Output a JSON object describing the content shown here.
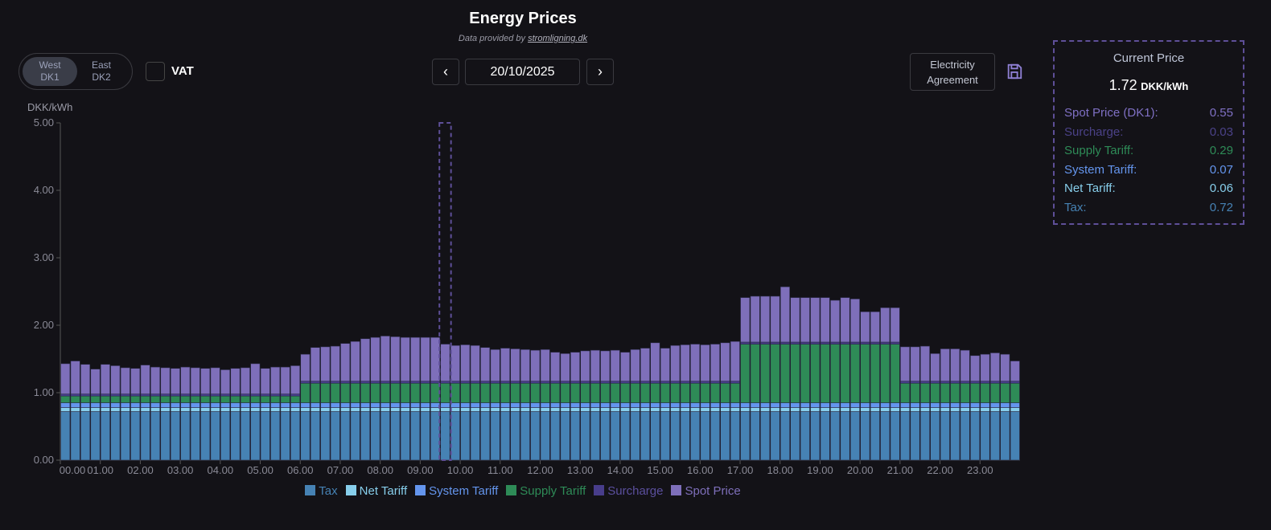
{
  "header": {
    "title": "Energy Prices",
    "subtitle_prefix": "Data provided by ",
    "subtitle_link": "stromligning.dk"
  },
  "controls": {
    "regions": [
      {
        "line1": "West",
        "line2": "DK1",
        "active": true
      },
      {
        "line1": "East",
        "line2": "DK2",
        "active": false
      }
    ],
    "vat_label": "VAT",
    "vat_checked": false,
    "prev_icon": "chevron-left-icon",
    "next_icon": "chevron-right-icon",
    "date": "20/10/2025",
    "agreement_line1": "Electricity",
    "agreement_line2": "Agreement",
    "save_icon": "floppy-disk-icon"
  },
  "current_price": {
    "title": "Current Price",
    "total": "1.72",
    "unit": "DKK/kWh",
    "rows": [
      {
        "label": "Spot Price (DK1):",
        "value": "0.55",
        "color": "#7f70c4"
      },
      {
        "label": "Surcharge:",
        "value": "0.03",
        "color": "#4b4288"
      },
      {
        "label": "Supply Tariff:",
        "value": "0.29",
        "color": "#2e8b57"
      },
      {
        "label": "System Tariff:",
        "value": "0.07",
        "color": "#6495ed"
      },
      {
        "label": "Net Tariff:",
        "value": "0.06",
        "color": "#87ceeb"
      },
      {
        "label": "Tax:",
        "value": "0.72",
        "color": "#4682b4"
      }
    ]
  },
  "chart_data": {
    "type": "bar",
    "stacked": true,
    "ylabel": "DKK/kWh",
    "ylim": [
      0,
      5
    ],
    "yticks": [
      "0.00",
      "1.00",
      "2.00",
      "3.00",
      "4.00",
      "5.00"
    ],
    "xticks": [
      "00.00",
      "01.00",
      "02.00",
      "03.00",
      "04.00",
      "05.00",
      "06.00",
      "07.00",
      "08.00",
      "09.00",
      "10.00",
      "11.00",
      "12.00",
      "13.00",
      "14.00",
      "15.00",
      "16.00",
      "17.00",
      "18.00",
      "19.00",
      "20.00",
      "21.00",
      "22.00",
      "23.00"
    ],
    "interval_minutes": 15,
    "highlighted_interval": "09.30",
    "legend_position": "bottom",
    "series": [
      {
        "name": "Tax",
        "color": "#4682b4",
        "values_by_period": {
          "night": 0.72,
          "day": 0.72,
          "peak": 0.72
        }
      },
      {
        "name": "Net Tariff",
        "color": "#87ceeb",
        "values_by_period": {
          "night": 0.06,
          "day": 0.06,
          "peak": 0.06
        }
      },
      {
        "name": "System Tariff",
        "color": "#6495ed",
        "values_by_period": {
          "night": 0.07,
          "day": 0.07,
          "peak": 0.07
        }
      },
      {
        "name": "Supply Tariff",
        "color": "#2e8b57",
        "values_by_period": {
          "night": 0.1,
          "day": 0.29,
          "peak": 0.87
        }
      },
      {
        "name": "Surcharge",
        "color": "#483d8b",
        "values_by_period": {
          "night": 0.03,
          "day": 0.03,
          "peak": 0.03
        }
      },
      {
        "name": "Spot Price",
        "color": "#7e6fba",
        "values": [
          0.45,
          0.49,
          0.44,
          0.37,
          0.44,
          0.42,
          0.39,
          0.38,
          0.43,
          0.4,
          0.39,
          0.38,
          0.4,
          0.39,
          0.38,
          0.39,
          0.36,
          0.38,
          0.39,
          0.45,
          0.38,
          0.4,
          0.4,
          0.42,
          0.4,
          0.5,
          0.51,
          0.52,
          0.56,
          0.59,
          0.63,
          0.65,
          0.67,
          0.66,
          0.65,
          0.65,
          0.65,
          0.65,
          0.55,
          0.53,
          0.54,
          0.53,
          0.5,
          0.47,
          0.49,
          0.48,
          0.47,
          0.46,
          0.47,
          0.43,
          0.41,
          0.43,
          0.45,
          0.46,
          0.45,
          0.46,
          0.43,
          0.47,
          0.49,
          0.57,
          0.49,
          0.53,
          0.54,
          0.55,
          0.54,
          0.55,
          0.57,
          0.59,
          0.66,
          0.68,
          0.68,
          0.68,
          0.82,
          0.66,
          0.66,
          0.66,
          0.66,
          0.62,
          0.66,
          0.64,
          0.45,
          0.45,
          0.51,
          0.51,
          0.51,
          0.51,
          0.52,
          0.41,
          0.48,
          0.48,
          0.46,
          0.38,
          0.4,
          0.42,
          0.4,
          0.3
        ]
      }
    ],
    "period_schedule": {
      "night": "00.00-06.00",
      "day": "06.00-17.00, 21.00-24.00",
      "peak": "17.00-21.00"
    }
  }
}
